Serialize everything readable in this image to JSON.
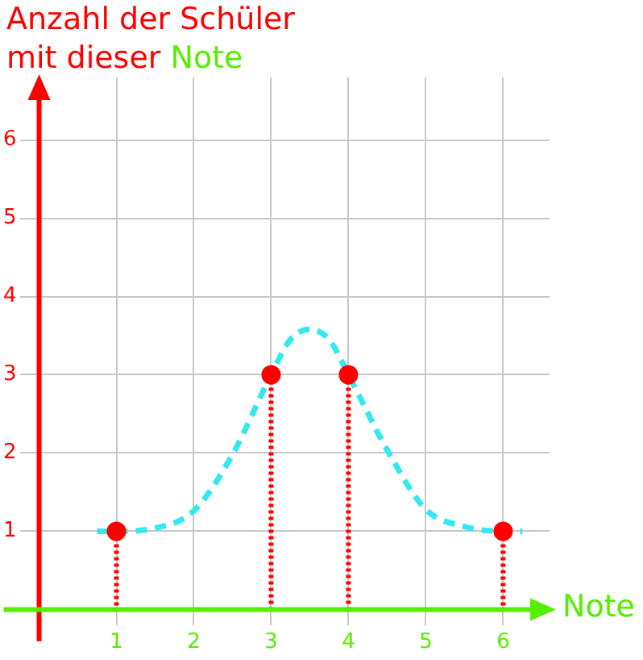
{
  "chart_data": {
    "type": "lollipop",
    "ylabel": "Anzahl der Schüler mit dieser Note",
    "xlabel": "Note",
    "xlim": [
      -0.25,
      6.6
    ],
    "xticks": [
      1,
      2,
      3,
      4,
      5,
      6
    ],
    "ylim": [
      -0.2,
      6.8
    ],
    "yticks": [
      1,
      2,
      3,
      4,
      5,
      6
    ],
    "grid": true,
    "legend": false,
    "marker": "circle",
    "series": [
      {
        "type": "line",
        "color": "#33e8f0",
        "line_style": "dashed",
        "marker": "none",
        "x": [
          0.75,
          1,
          1.5,
          2,
          2.5,
          3,
          3.25,
          3.5,
          3.75,
          4,
          4.5,
          5,
          5.5,
          6,
          6.25
        ],
        "values": [
          1.0,
          1.0,
          1.04,
          1.26,
          1.98,
          3.0,
          3.45,
          3.58,
          3.45,
          3.0,
          2.04,
          1.28,
          1.06,
          1.0,
          1.0
        ]
      },
      {
        "color": "#ff0000",
        "line_style": "dotted",
        "x": [
          1,
          3,
          4,
          6
        ],
        "values": [
          1,
          3,
          3,
          1
        ]
      }
    ]
  }
}
